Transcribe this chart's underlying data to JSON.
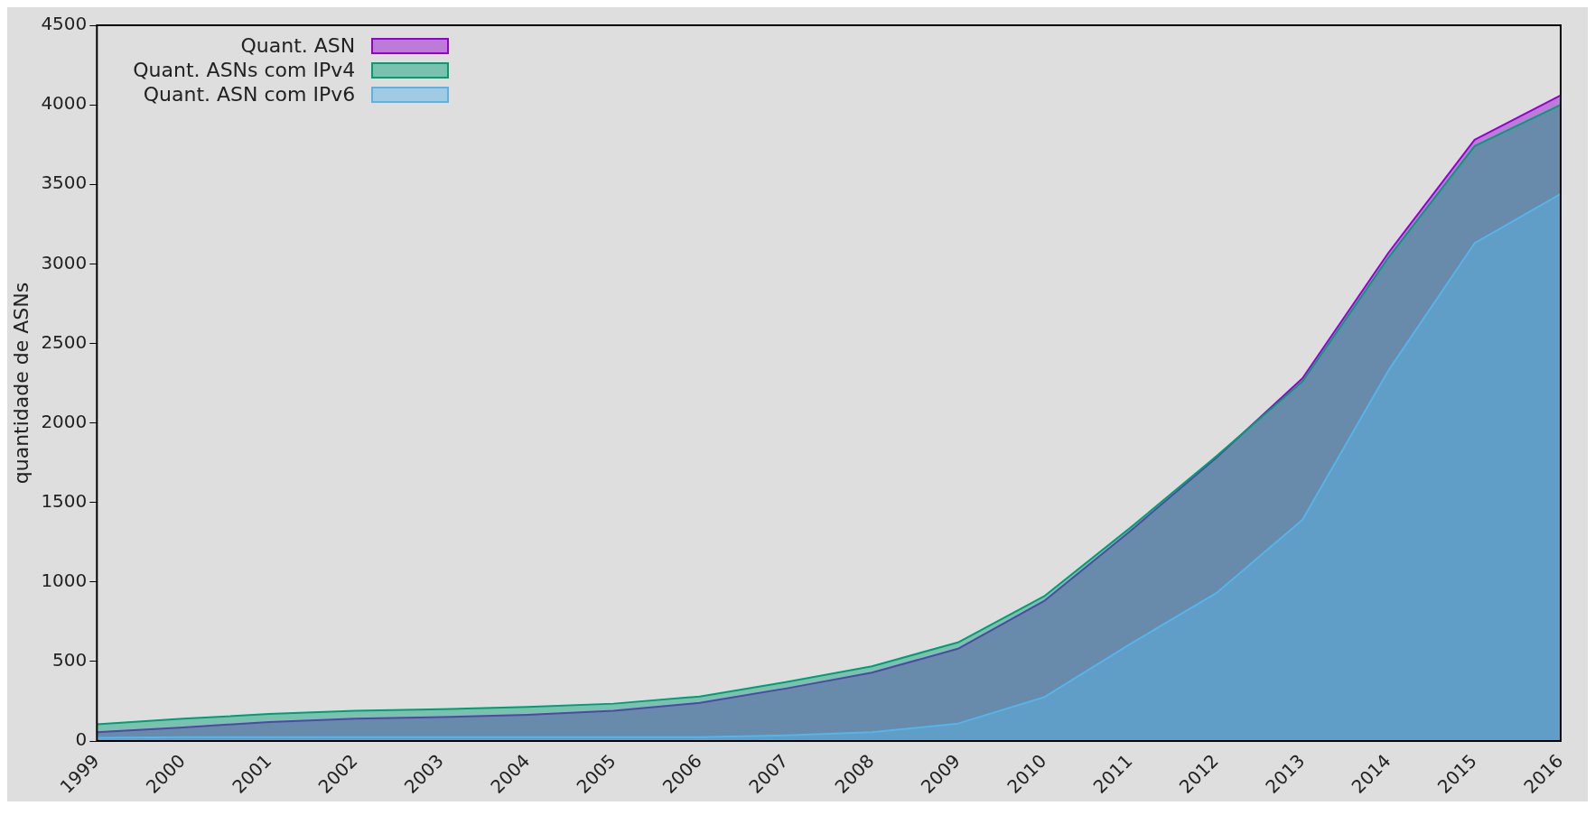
{
  "chart_data": {
    "type": "area",
    "ylabel": "quantidade de ASNs",
    "categories": [
      "1999",
      "2000",
      "2001",
      "2002",
      "2003",
      "2004",
      "2005",
      "2006",
      "2007",
      "2008",
      "2009",
      "2010",
      "2011",
      "2012",
      "2013",
      "2014",
      "2015",
      "2016"
    ],
    "series": [
      {
        "name": "Quant. ASN",
        "color": "#9400d3",
        "values": [
          55,
          85,
          120,
          140,
          150,
          165,
          190,
          240,
          330,
          430,
          580,
          880,
          1320,
          1780,
          2280,
          3070,
          3780,
          4060
        ]
      },
      {
        "name": "Quant. ASNs com IPv4",
        "color": "#009e73",
        "values": [
          105,
          140,
          170,
          190,
          200,
          215,
          235,
          280,
          370,
          470,
          620,
          910,
          1340,
          1790,
          2260,
          3040,
          3740,
          4000
        ]
      },
      {
        "name": "Quant. ASN com IPv6",
        "color": "#56b4e9",
        "values": [
          20,
          25,
          25,
          25,
          25,
          25,
          25,
          25,
          35,
          55,
          110,
          275,
          610,
          930,
          1390,
          2330,
          3130,
          3440
        ]
      }
    ],
    "ylim": [
      0,
      4500
    ],
    "yticks": [
      0,
      500,
      1000,
      1500,
      2000,
      2500,
      3000,
      3500,
      4000,
      4500
    ],
    "legend": "top left",
    "grid": false
  }
}
